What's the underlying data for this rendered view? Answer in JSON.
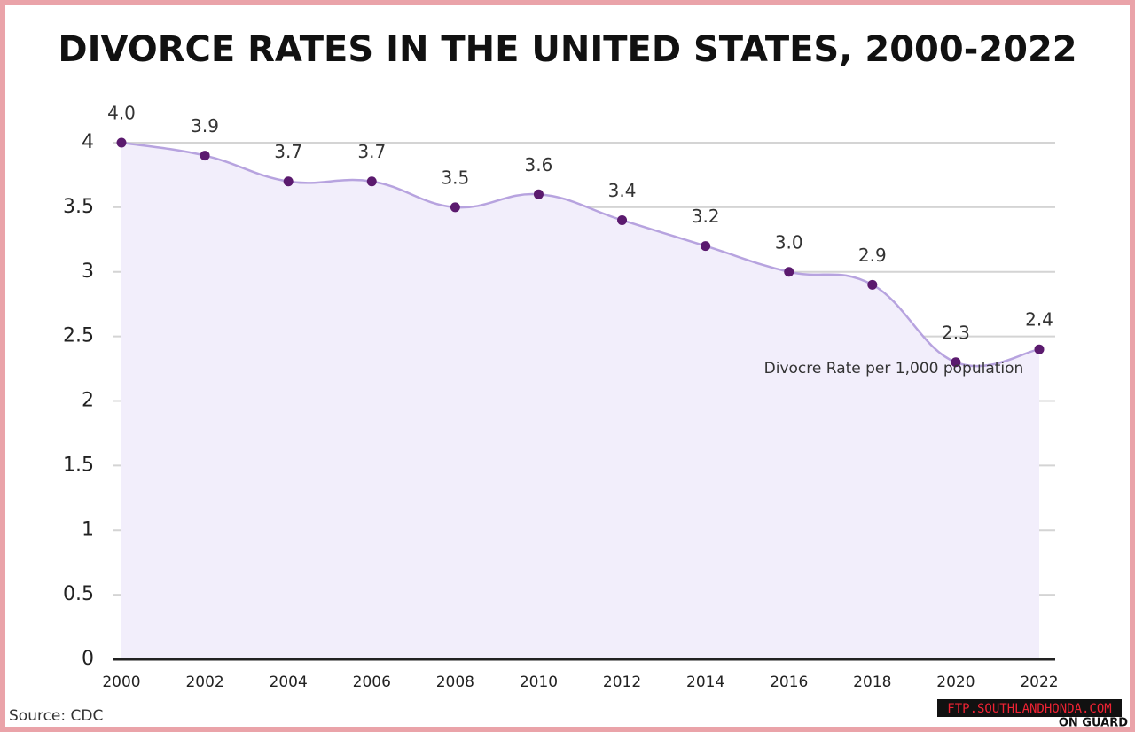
{
  "chart_data": {
    "type": "line",
    "title": "DIVORCE RATES IN THE UNITED STATES, 2000-2022",
    "categories": [
      "2000",
      "2002",
      "2004",
      "2006",
      "2008",
      "2010",
      "2012",
      "2014",
      "2016",
      "2018",
      "2020",
      "2022"
    ],
    "series": [
      {
        "name": "Divocre Rate per 1,000 population",
        "color": "#5b1a6e",
        "values": [
          4,
          3.9,
          3.7,
          3.7,
          3.5,
          3.6,
          3.4,
          3.2,
          3,
          2.9,
          2.3,
          2.4
        ],
        "value_labels": [
          "4.0",
          "3.9",
          "3.7",
          "3.7",
          "3.5",
          "3.6",
          "3.4",
          "3.2",
          "3.0",
          "2.9",
          "2.3",
          "2.4"
        ]
      }
    ],
    "ylim": [
      0,
      4
    ],
    "yticks": [
      0,
      0.5,
      1,
      1.5,
      2,
      2.5,
      3,
      3.5,
      4
    ],
    "grid": true,
    "source": "Source: CDC",
    "watermark": "FTP.SOUTHLANDHONDA.COM",
    "logo_text": "ON GUARD"
  }
}
